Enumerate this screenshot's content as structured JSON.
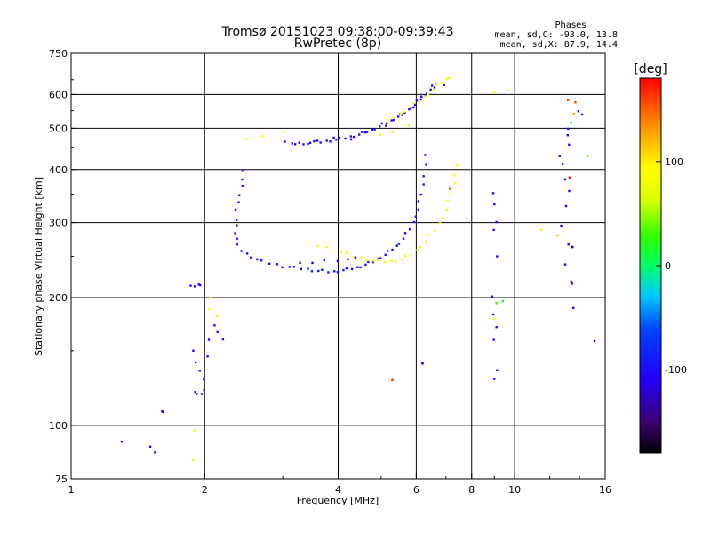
{
  "chart_data": {
    "type": "scatter",
    "title": "Tromsø 20151023 09:38:00-09:39:43",
    "subtitle": "RwPretec (8p)",
    "xlabel": "Frequency [MHz]",
    "ylabel": "Stationary phase Virtual Height [km]",
    "x_scale": "log",
    "y_scale": "log",
    "xlim": [
      1,
      16
    ],
    "ylim": [
      75,
      750
    ],
    "x_ticks": [
      1,
      2,
      4,
      6,
      8,
      10,
      16
    ],
    "x_tick_labels": [
      "1",
      "2",
      "4",
      "6",
      "8",
      "10",
      "16"
    ],
    "y_ticks": [
      75,
      100,
      200,
      300,
      400,
      500,
      600,
      750
    ],
    "y_tick_labels": [
      "75",
      "100",
      "200",
      "300",
      "400",
      "500",
      "600",
      "750"
    ],
    "grid": true,
    "phase_box": {
      "title": "Phases",
      "line_o": "mean, sd,O: -93.0, 13.8",
      "line_x": "mean, sd,X:  87.9, 14.4"
    },
    "colorbar": {
      "unit_label": "[deg]",
      "range": [
        -180,
        180
      ],
      "tick_values": [
        100,
        0,
        -100
      ],
      "tick_labels": [
        "100",
        "0",
        "-100"
      ]
    },
    "series": [
      {
        "description_id": "o_lower_trace",
        "phase": -95,
        "points": [
          [
            2.45,
            395
          ],
          [
            2.43,
            380
          ],
          [
            2.42,
            365
          ],
          [
            2.4,
            350
          ],
          [
            2.38,
            335
          ],
          [
            2.36,
            320
          ],
          [
            2.36,
            305
          ],
          [
            2.35,
            295
          ],
          [
            2.35,
            285
          ],
          [
            2.36,
            275
          ],
          [
            2.38,
            265
          ],
          [
            2.42,
            258
          ],
          [
            2.48,
            253
          ],
          [
            2.55,
            250
          ],
          [
            2.62,
            246
          ],
          [
            2.7,
            243
          ],
          [
            2.8,
            241
          ],
          [
            2.9,
            239
          ],
          [
            3.0,
            237
          ],
          [
            3.1,
            236
          ],
          [
            3.2,
            235
          ],
          [
            3.3,
            234
          ],
          [
            3.4,
            233
          ],
          [
            3.5,
            232
          ],
          [
            3.6,
            231
          ],
          [
            3.7,
            231
          ],
          [
            3.8,
            230
          ],
          [
            3.9,
            230
          ],
          [
            4.0,
            231
          ],
          [
            4.1,
            232
          ],
          [
            4.2,
            233
          ],
          [
            4.3,
            234
          ],
          [
            4.4,
            235
          ],
          [
            4.5,
            237
          ],
          [
            4.6,
            239
          ],
          [
            4.7,
            241
          ],
          [
            4.8,
            243
          ],
          [
            4.9,
            246
          ],
          [
            5.0,
            249
          ],
          [
            5.1,
            252
          ],
          [
            5.2,
            256
          ],
          [
            5.3,
            260
          ],
          [
            5.4,
            264
          ],
          [
            5.5,
            269
          ],
          [
            5.6,
            275
          ],
          [
            5.7,
            282
          ],
          [
            5.8,
            290
          ],
          [
            5.9,
            300
          ],
          [
            6.0,
            312
          ],
          [
            6.05,
            322
          ],
          [
            6.1,
            335
          ],
          [
            6.15,
            350
          ],
          [
            6.2,
            368
          ],
          [
            6.25,
            388
          ],
          [
            6.3,
            410
          ],
          [
            6.32,
            430
          ]
        ]
      },
      {
        "description_id": "o_upper_trace",
        "phase": -100,
        "points": [
          [
            3.05,
            462
          ],
          [
            3.15,
            462
          ],
          [
            3.25,
            461
          ],
          [
            3.35,
            461
          ],
          [
            3.45,
            462
          ],
          [
            3.55,
            463
          ],
          [
            3.65,
            464
          ],
          [
            3.75,
            466
          ],
          [
            3.85,
            468
          ],
          [
            3.95,
            470
          ],
          [
            4.05,
            472
          ],
          [
            4.15,
            474
          ],
          [
            4.25,
            477
          ],
          [
            4.35,
            480
          ],
          [
            4.45,
            483
          ],
          [
            4.55,
            487
          ],
          [
            4.65,
            491
          ],
          [
            4.75,
            495
          ],
          [
            4.85,
            500
          ],
          [
            4.95,
            505
          ],
          [
            5.05,
            510
          ],
          [
            5.15,
            515
          ],
          [
            5.25,
            520
          ],
          [
            5.35,
            526
          ],
          [
            5.45,
            532
          ],
          [
            5.55,
            538
          ],
          [
            5.65,
            545
          ],
          [
            5.75,
            552
          ],
          [
            5.85,
            560
          ],
          [
            5.95,
            568
          ],
          [
            6.05,
            577
          ],
          [
            6.15,
            586
          ],
          [
            6.25,
            596
          ],
          [
            6.35,
            606
          ],
          [
            6.45,
            616
          ],
          [
            6.55,
            626
          ],
          [
            6.65,
            636
          ]
        ]
      },
      {
        "description_id": "x_lower_trace",
        "phase": 88,
        "points": [
          [
            3.45,
            268
          ],
          [
            3.6,
            265
          ],
          [
            3.75,
            262
          ],
          [
            3.9,
            259
          ],
          [
            4.05,
            256
          ],
          [
            4.2,
            253
          ],
          [
            4.35,
            250
          ],
          [
            4.5,
            248
          ],
          [
            4.65,
            246
          ],
          [
            4.8,
            244
          ],
          [
            4.95,
            243
          ],
          [
            5.1,
            243
          ],
          [
            5.25,
            243
          ],
          [
            5.4,
            244
          ],
          [
            5.55,
            246
          ],
          [
            5.7,
            249
          ],
          [
            5.85,
            253
          ],
          [
            6.0,
            258
          ],
          [
            6.15,
            264
          ],
          [
            6.3,
            271
          ],
          [
            6.45,
            279
          ],
          [
            6.6,
            288
          ],
          [
            6.75,
            298
          ],
          [
            6.9,
            310
          ],
          [
            7.0,
            322
          ],
          [
            7.1,
            336
          ],
          [
            7.2,
            352
          ],
          [
            7.3,
            370
          ],
          [
            7.35,
            390
          ],
          [
            7.4,
            410
          ]
        ]
      },
      {
        "description_id": "x_upper_trace",
        "phase": 90,
        "points": [
          [
            5.2,
            520
          ],
          [
            5.35,
            530
          ],
          [
            5.5,
            540
          ],
          [
            5.65,
            550
          ],
          [
            5.8,
            560
          ],
          [
            5.95,
            570
          ],
          [
            6.1,
            580
          ],
          [
            6.25,
            592
          ],
          [
            6.4,
            604
          ],
          [
            6.55,
            616
          ],
          [
            6.7,
            628
          ],
          [
            6.85,
            640
          ],
          [
            7.0,
            652
          ],
          [
            7.15,
            660
          ]
        ]
      },
      {
        "description_id": "o_low_freq_scatter",
        "phase": -105,
        "points": [
          [
            1.87,
            212
          ],
          [
            1.9,
            213
          ],
          [
            1.93,
            214
          ],
          [
            1.96,
            215
          ],
          [
            1.88,
            150
          ],
          [
            1.92,
            140
          ],
          [
            1.95,
            135
          ],
          [
            1.98,
            128
          ],
          [
            2.0,
            122
          ],
          [
            1.9,
            120
          ],
          [
            1.93,
            118
          ],
          [
            1.97,
            119
          ],
          [
            2.02,
            145
          ],
          [
            2.05,
            160
          ],
          [
            1.6,
            108
          ],
          [
            1.62,
            107
          ],
          [
            1.3,
            92
          ],
          [
            1.5,
            89
          ],
          [
            1.55,
            87
          ],
          [
            2.1,
            172
          ],
          [
            2.15,
            165
          ],
          [
            2.2,
            160
          ]
        ]
      },
      {
        "description_id": "o_mid_scatter",
        "phase": -110,
        "points": [
          [
            3.3,
            240
          ],
          [
            3.5,
            242
          ],
          [
            3.7,
            244
          ],
          [
            4.0,
            245
          ],
          [
            4.2,
            246
          ],
          [
            4.4,
            247
          ],
          [
            3.2,
            460
          ],
          [
            3.4,
            458
          ],
          [
            3.6,
            470
          ],
          [
            3.9,
            475
          ],
          [
            4.3,
            468
          ],
          [
            4.6,
            490
          ],
          [
            5.1,
            505
          ],
          [
            5.6,
            540
          ],
          [
            5.9,
            560
          ],
          [
            6.2,
            590
          ],
          [
            6.6,
            625
          ],
          [
            6.9,
            630
          ]
        ]
      },
      {
        "description_id": "x_scatter",
        "phase": 85,
        "points": [
          [
            2.07,
            198
          ],
          [
            2.05,
            188
          ],
          [
            2.12,
            180
          ],
          [
            1.9,
            98
          ],
          [
            1.88,
            83
          ],
          [
            2.5,
            470
          ],
          [
            2.7,
            480
          ],
          [
            3.0,
            488
          ],
          [
            5.0,
            486
          ],
          [
            5.3,
            490
          ],
          [
            5.8,
            505
          ],
          [
            9.0,
            610
          ],
          [
            9.6,
            612
          ],
          [
            11.5,
            290
          ],
          [
            12.9,
            380
          ]
        ]
      },
      {
        "description_id": "high_freq_scatter",
        "phase": -110,
        "points": [
          [
            9.0,
            350
          ],
          [
            9.0,
            332
          ],
          [
            9.05,
            300
          ],
          [
            9.0,
            290
          ],
          [
            9.1,
            250
          ],
          [
            8.95,
            200
          ],
          [
            8.95,
            183
          ],
          [
            9.05,
            170
          ],
          [
            9.0,
            160
          ],
          [
            9.1,
            135
          ],
          [
            9.05,
            128
          ],
          [
            13.2,
            500
          ],
          [
            13.1,
            480
          ],
          [
            13.3,
            460
          ],
          [
            12.6,
            430
          ],
          [
            12.9,
            410
          ],
          [
            13.0,
            380
          ],
          [
            13.2,
            355
          ],
          [
            13.1,
            330
          ],
          [
            12.7,
            295
          ],
          [
            13.3,
            265
          ],
          [
            13.0,
            240
          ],
          [
            13.4,
            215
          ],
          [
            13.6,
            190
          ],
          [
            15.1,
            158
          ],
          [
            14.0,
            545
          ],
          [
            14.2,
            540
          ]
        ]
      }
    ],
    "isolated_points": [
      {
        "x": 5.3,
        "y": 128,
        "phase": 160
      },
      {
        "x": 6.2,
        "y": 140,
        "phase": -130
      },
      {
        "x": 7.15,
        "y": 360,
        "phase": 150
      },
      {
        "x": 9.1,
        "y": 194,
        "phase": 30
      },
      {
        "x": 9.4,
        "y": 196,
        "phase": 20
      },
      {
        "x": 9.0,
        "y": 178,
        "phase": 95
      },
      {
        "x": 13.2,
        "y": 583,
        "phase": 165
      },
      {
        "x": 13.7,
        "y": 575,
        "phase": 150
      },
      {
        "x": 13.6,
        "y": 540,
        "phase": 120
      },
      {
        "x": 13.4,
        "y": 515,
        "phase": 20
      },
      {
        "x": 14.6,
        "y": 430,
        "phase": 40
      },
      {
        "x": 13.3,
        "y": 383,
        "phase": 170
      },
      {
        "x": 13.4,
        "y": 218,
        "phase": 170
      },
      {
        "x": 13.5,
        "y": 263,
        "phase": -150
      },
      {
        "x": 12.5,
        "y": 280,
        "phase": 110
      }
    ]
  }
}
